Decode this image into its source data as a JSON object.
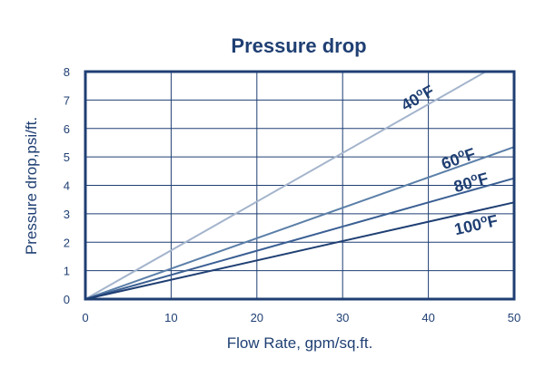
{
  "chart_data": {
    "type": "line",
    "title": "Pressure drop",
    "xlabel": "Flow Rate, gpm/sq.ft.",
    "ylabel": "Pressure drop,psi/ft.",
    "xlim": [
      0,
      50
    ],
    "ylim": [
      0,
      8
    ],
    "xticks": [
      "0",
      "10",
      "20",
      "30",
      "40",
      "50"
    ],
    "yticks": [
      "0",
      "1",
      "2",
      "3",
      "4",
      "5",
      "6",
      "7",
      "8"
    ],
    "grid": true,
    "series": [
      {
        "name": "40°F",
        "color": "#a3b4cc",
        "x": [
          0,
          46.7
        ],
        "y": [
          0,
          8
        ]
      },
      {
        "name": "60°F",
        "color": "#5b7fa8",
        "x": [
          0,
          50
        ],
        "y": [
          0,
          5.35
        ]
      },
      {
        "name": "80°F",
        "color": "#3a5f93",
        "x": [
          0,
          50
        ],
        "y": [
          0,
          4.25
        ]
      },
      {
        "name": "100°F",
        "color": "#1f3f73",
        "x": [
          0,
          50
        ],
        "y": [
          0,
          3.4
        ]
      }
    ],
    "labels": [
      {
        "series": 0,
        "at": [
          37.3,
          6.6
        ],
        "base": "40",
        "sup": "o",
        "unit": "F"
      },
      {
        "series": 1,
        "at": [
          41.8,
          4.55
        ],
        "base": "60",
        "sup": "o",
        "unit": "F"
      },
      {
        "series": 2,
        "at": [
          43.2,
          3.75
        ],
        "base": "80",
        "sup": "o",
        "unit": "F"
      },
      {
        "series": 3,
        "at": [
          43.2,
          2.25
        ],
        "base": "100",
        "sup": "o",
        "unit": "F"
      }
    ]
  }
}
